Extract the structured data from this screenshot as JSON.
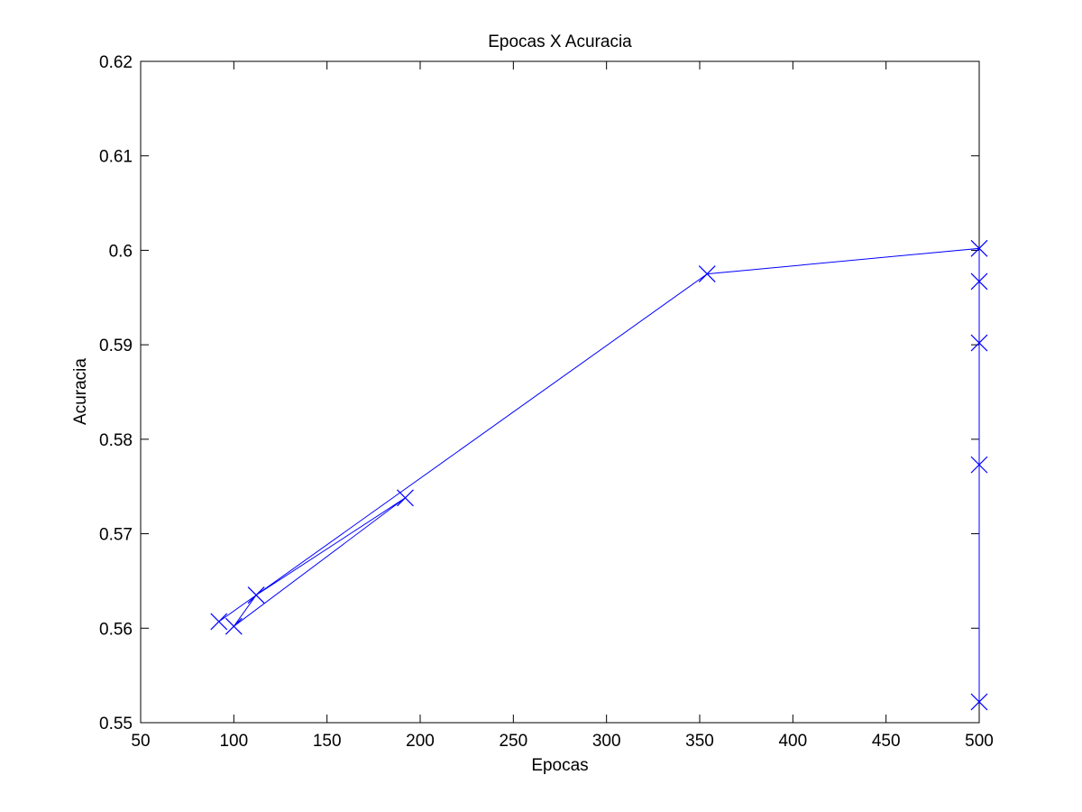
{
  "chart_data": {
    "type": "line",
    "title": "Epocas X Acuracia",
    "xlabel": "Epocas",
    "ylabel": "Acuracia",
    "xlim": [
      50,
      500
    ],
    "ylim": [
      0.55,
      0.62
    ],
    "xticks": [
      50,
      100,
      150,
      200,
      250,
      300,
      350,
      400,
      450,
      500
    ],
    "yticks": [
      0.55,
      0.56,
      0.57,
      0.58,
      0.59,
      0.6,
      0.61,
      0.62
    ],
    "xtick_labels": [
      "50",
      "100",
      "150",
      "200",
      "250",
      "300",
      "350",
      "400",
      "450",
      "500"
    ],
    "ytick_labels": [
      "0.55",
      "0.56",
      "0.57",
      "0.58",
      "0.59",
      "0.6",
      "0.61",
      "0.62"
    ],
    "grid": false,
    "series": [
      {
        "color": "#0000ff",
        "marker": "x",
        "line_style": "solid",
        "x": [
          92,
          112,
          192,
          100,
          112,
          354,
          500,
          500,
          500,
          500,
          500
        ],
        "y": [
          0.5607,
          0.5635,
          0.5738,
          0.5602,
          0.5635,
          0.5975,
          0.6002,
          0.5967,
          0.5902,
          0.5773,
          0.5522
        ]
      }
    ]
  }
}
